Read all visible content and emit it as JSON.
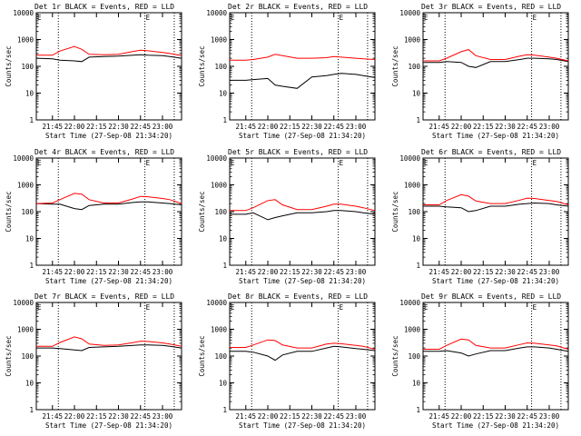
{
  "figure": {
    "xlabel": "Start Time (27-Sep-08 21:34:20)",
    "ylabel": "Counts/sec",
    "legend_text": "BLACK = Events, RED = LLD",
    "x_tick_labels": [
      "21:45",
      "22:00",
      "22:15",
      "22:30",
      "22:45",
      "23:00"
    ],
    "y_tick_labels": [
      "1",
      "10",
      "100",
      "1000",
      "10000"
    ],
    "colors": {
      "events": "#000000",
      "lld": "#ff0000",
      "marker": "#000000"
    },
    "glyph": "E"
  },
  "chart_data": [
    {
      "type": "line",
      "title": "Det 1r BLACK = Events, RED = LLD",
      "xlabel": "Start Time (27-Sep-08 21:34:20)",
      "ylabel": "Counts/sec",
      "y_scale": "log",
      "ylim": [
        1,
        10000
      ],
      "xlim": [
        "21:34",
        "23:13"
      ],
      "x": [
        "21:34",
        "21:45",
        "21:50",
        "22:00",
        "22:05",
        "22:10",
        "22:20",
        "22:30",
        "22:40",
        "22:45",
        "22:50",
        "23:00",
        "23:05",
        "23:13"
      ],
      "series": [
        {
          "name": "Events",
          "values": [
            200,
            190,
            170,
            160,
            150,
            220,
            230,
            240,
            260,
            270,
            260,
            250,
            230,
            200
          ]
        },
        {
          "name": "LLD",
          "values": [
            260,
            260,
            370,
            550,
            430,
            280,
            270,
            280,
            360,
            400,
            380,
            330,
            300,
            250
          ]
        }
      ],
      "vertical_markers": [
        "21:49",
        "22:48",
        "23:08"
      ]
    },
    {
      "type": "line",
      "title": "Det 2r BLACK = Events, RED = LLD",
      "xlabel": "Start Time (27-Sep-08 21:34:20)",
      "ylabel": "Counts/sec",
      "y_scale": "log",
      "ylim": [
        1,
        10000
      ],
      "xlim": [
        "21:34",
        "23:13"
      ],
      "x": [
        "21:34",
        "21:45",
        "21:50",
        "22:00",
        "22:05",
        "22:10",
        "22:20",
        "22:30",
        "22:40",
        "22:45",
        "22:50",
        "23:00",
        "23:05",
        "23:13"
      ],
      "series": [
        {
          "name": "Events",
          "values": [
            30,
            30,
            32,
            35,
            20,
            18,
            15,
            40,
            45,
            50,
            55,
            50,
            45,
            38
          ]
        },
        {
          "name": "LLD",
          "values": [
            170,
            170,
            180,
            220,
            280,
            250,
            200,
            200,
            210,
            230,
            220,
            200,
            190,
            180
          ]
        }
      ],
      "vertical_markers": [
        "21:49",
        "22:48",
        "23:08"
      ]
    },
    {
      "type": "line",
      "title": "Det 3r BLACK = Events, RED = LLD",
      "xlabel": "Start Time (27-Sep-08 21:34:20)",
      "ylabel": "Counts/sec",
      "y_scale": "log",
      "ylim": [
        1,
        10000
      ],
      "xlim": [
        "21:34",
        "23:13"
      ],
      "x": [
        "21:34",
        "21:45",
        "21:50",
        "22:00",
        "22:05",
        "22:10",
        "22:20",
        "22:30",
        "22:40",
        "22:45",
        "22:50",
        "23:00",
        "23:05",
        "23:13"
      ],
      "series": [
        {
          "name": "Events",
          "values": [
            140,
            140,
            150,
            140,
            100,
            90,
            150,
            150,
            180,
            200,
            200,
            190,
            180,
            150
          ]
        },
        {
          "name": "LLD",
          "values": [
            160,
            160,
            200,
            350,
            420,
            250,
            180,
            180,
            240,
            270,
            260,
            220,
            200,
            160
          ]
        }
      ],
      "vertical_markers": [
        "21:49",
        "22:48",
        "23:08"
      ]
    },
    {
      "type": "line",
      "title": "Det 4r BLACK = Events, RED = LLD",
      "xlabel": "Start Time (27-Sep-08 21:34:20)",
      "ylabel": "Counts/sec",
      "y_scale": "log",
      "ylim": [
        1,
        10000
      ],
      "xlim": [
        "21:34",
        "23:13"
      ],
      "x": [
        "21:34",
        "21:45",
        "21:50",
        "22:00",
        "22:05",
        "22:10",
        "22:20",
        "22:30",
        "22:40",
        "22:45",
        "22:50",
        "23:00",
        "23:05",
        "23:13"
      ],
      "series": [
        {
          "name": "Events",
          "values": [
            200,
            190,
            190,
            130,
            120,
            170,
            190,
            190,
            220,
            230,
            230,
            210,
            200,
            180
          ]
        },
        {
          "name": "LLD",
          "values": [
            200,
            210,
            280,
            480,
            450,
            280,
            210,
            210,
            300,
            370,
            360,
            310,
            280,
            200
          ]
        }
      ],
      "vertical_markers": [
        "21:49",
        "22:48",
        "23:08"
      ]
    },
    {
      "type": "line",
      "title": "Det 5r BLACK = Events, RED = LLD",
      "xlabel": "Start Time (27-Sep-08 21:34:20)",
      "ylabel": "Counts/sec",
      "y_scale": "log",
      "ylim": [
        1,
        10000
      ],
      "xlim": [
        "21:34",
        "23:13"
      ],
      "x": [
        "21:34",
        "21:45",
        "21:50",
        "22:00",
        "22:05",
        "22:10",
        "22:20",
        "22:30",
        "22:40",
        "22:45",
        "22:50",
        "23:00",
        "23:05",
        "23:13"
      ],
      "series": [
        {
          "name": "Events",
          "values": [
            80,
            80,
            90,
            50,
            60,
            70,
            90,
            90,
            100,
            110,
            110,
            100,
            90,
            80
          ]
        },
        {
          "name": "LLD",
          "values": [
            110,
            110,
            140,
            260,
            280,
            180,
            120,
            120,
            160,
            190,
            190,
            160,
            140,
            110
          ]
        }
      ],
      "vertical_markers": [
        "21:49",
        "22:48",
        "23:08"
      ]
    },
    {
      "type": "line",
      "title": "Det 6r BLACK = Events, RED = LLD",
      "xlabel": "Start Time (27-Sep-08 21:34:20)",
      "ylabel": "Counts/sec",
      "y_scale": "log",
      "ylim": [
        1,
        10000
      ],
      "xlim": [
        "21:34",
        "23:13"
      ],
      "x": [
        "21:34",
        "21:45",
        "21:50",
        "22:00",
        "22:05",
        "22:10",
        "22:20",
        "22:30",
        "22:40",
        "22:45",
        "22:50",
        "23:00",
        "23:05",
        "23:13"
      ],
      "series": [
        {
          "name": "Events",
          "values": [
            160,
            160,
            150,
            140,
            100,
            110,
            160,
            160,
            190,
            200,
            210,
            200,
            180,
            160
          ]
        },
        {
          "name": "LLD",
          "values": [
            180,
            180,
            260,
            430,
            380,
            250,
            200,
            200,
            270,
            320,
            310,
            260,
            240,
            180
          ]
        }
      ],
      "vertical_markers": [
        "21:49",
        "22:48",
        "23:08"
      ]
    },
    {
      "type": "line",
      "title": "Det 7r BLACK = Events, RED = LLD",
      "xlabel": "Start Time (27-Sep-08 21:34:20)",
      "ylabel": "Counts/sec",
      "y_scale": "log",
      "ylim": [
        1,
        10000
      ],
      "xlim": [
        "21:34",
        "23:13"
      ],
      "x": [
        "21:34",
        "21:45",
        "21:50",
        "22:00",
        "22:05",
        "22:10",
        "22:20",
        "22:30",
        "22:40",
        "22:45",
        "22:50",
        "23:00",
        "23:05",
        "23:13"
      ],
      "series": [
        {
          "name": "Events",
          "values": [
            200,
            200,
            190,
            170,
            160,
            210,
            220,
            230,
            250,
            260,
            260,
            250,
            230,
            200
          ]
        },
        {
          "name": "LLD",
          "values": [
            230,
            230,
            320,
            520,
            440,
            280,
            250,
            260,
            320,
            360,
            350,
            310,
            280,
            230
          ]
        }
      ],
      "vertical_markers": [
        "21:49",
        "22:48",
        "23:08"
      ]
    },
    {
      "type": "line",
      "title": "Det 8r BLACK = Events, RED = LLD",
      "xlabel": "Start Time (27-Sep-08 21:34:20)",
      "ylabel": "Counts/sec",
      "y_scale": "log",
      "ylim": [
        1,
        10000
      ],
      "xlim": [
        "21:34",
        "23:13"
      ],
      "x": [
        "21:34",
        "21:45",
        "21:50",
        "22:00",
        "22:05",
        "22:10",
        "22:20",
        "22:30",
        "22:40",
        "22:45",
        "22:50",
        "23:00",
        "23:05",
        "23:13"
      ],
      "series": [
        {
          "name": "Events",
          "values": [
            150,
            150,
            140,
            100,
            70,
            110,
            150,
            150,
            200,
            230,
            220,
            190,
            180,
            160
          ]
        },
        {
          "name": "LLD",
          "values": [
            210,
            210,
            260,
            400,
            380,
            260,
            200,
            200,
            280,
            300,
            290,
            250,
            230,
            180
          ]
        }
      ],
      "vertical_markers": [
        "21:49",
        "22:48",
        "23:08"
      ]
    },
    {
      "type": "line",
      "title": "Det 9r BLACK = Events, RED = LLD",
      "xlabel": "Start Time (27-Sep-08 21:34:20)",
      "ylabel": "Counts/sec",
      "y_scale": "log",
      "ylim": [
        1,
        10000
      ],
      "xlim": [
        "21:34",
        "23:13"
      ],
      "x": [
        "21:34",
        "21:45",
        "21:50",
        "22:00",
        "22:05",
        "22:10",
        "22:20",
        "22:30",
        "22:40",
        "22:45",
        "22:50",
        "23:00",
        "23:05",
        "23:13"
      ],
      "series": [
        {
          "name": "Events",
          "values": [
            150,
            150,
            160,
            130,
            100,
            120,
            160,
            160,
            200,
            220,
            220,
            200,
            180,
            150
          ]
        },
        {
          "name": "LLD",
          "values": [
            180,
            180,
            250,
            430,
            400,
            250,
            200,
            200,
            270,
            310,
            300,
            260,
            240,
            180
          ]
        }
      ],
      "vertical_markers": [
        "21:49",
        "22:48",
        "23:08"
      ]
    }
  ]
}
